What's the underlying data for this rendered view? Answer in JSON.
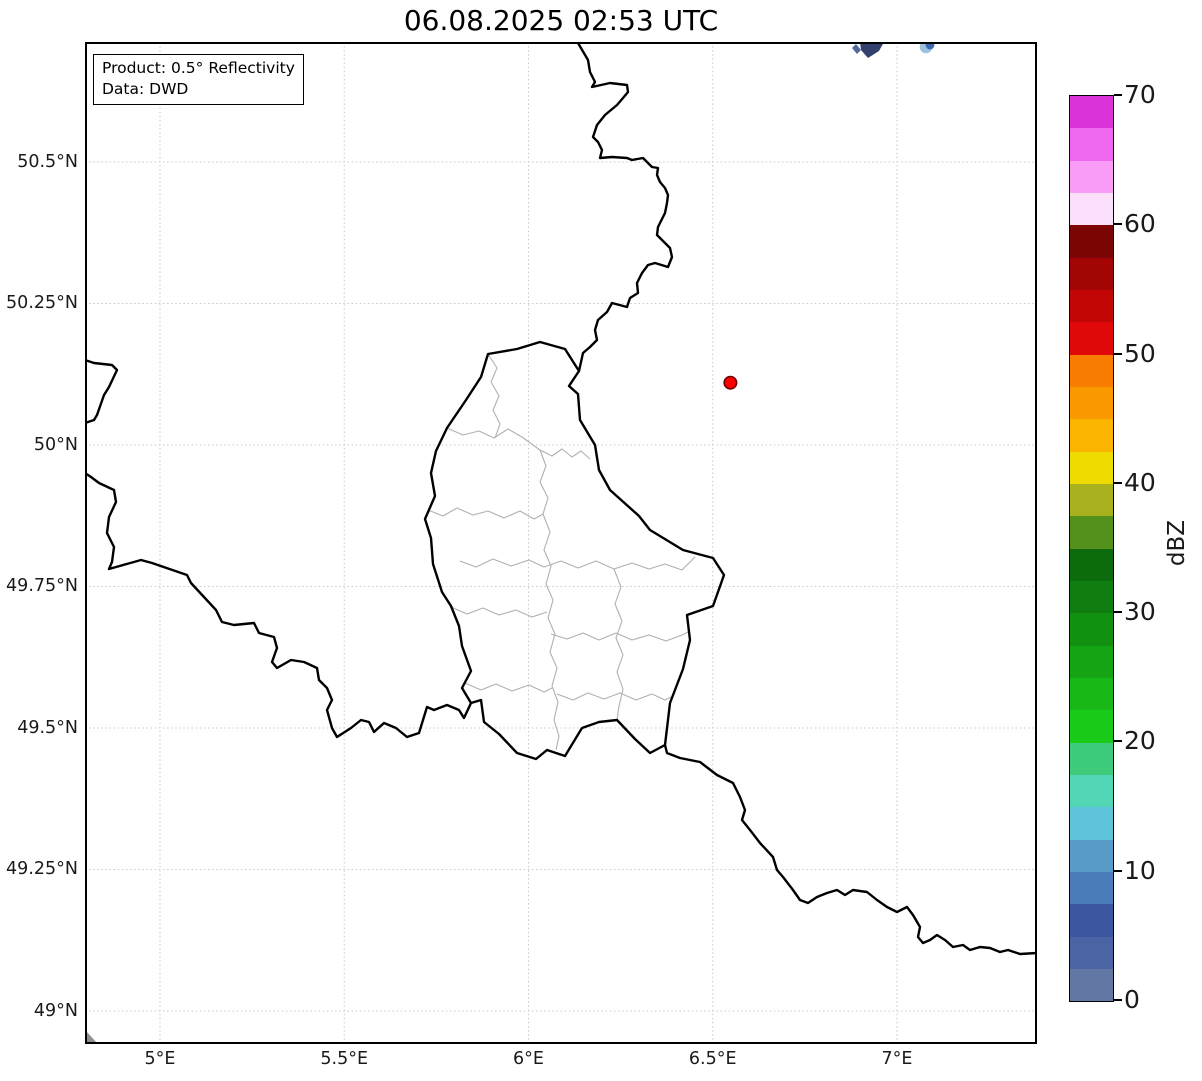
{
  "title": "06.08.2025 02:53 UTC",
  "info_box": {
    "product": "Product: 0.5° Reflectivity",
    "data_source": "Data: DWD"
  },
  "map": {
    "extent": {
      "lon_min": 4.7965,
      "lon_max": 7.3799,
      "lat_min": 48.9416,
      "lat_max": 50.712
    },
    "x_ticks": [
      {
        "lon": 5.0,
        "label": "5°E"
      },
      {
        "lon": 5.5,
        "label": "5.5°E"
      },
      {
        "lon": 6.0,
        "label": "6°E"
      },
      {
        "lon": 6.5,
        "label": "6.5°E"
      },
      {
        "lon": 7.0,
        "label": "7°E"
      }
    ],
    "y_ticks": [
      {
        "lat": 50.5,
        "label": "50.5°N"
      },
      {
        "lat": 50.25,
        "label": "50.25°N"
      },
      {
        "lat": 50.0,
        "label": "50°N"
      },
      {
        "lat": 49.75,
        "label": "49.75°N"
      },
      {
        "lat": 49.5,
        "label": "49.5°N"
      },
      {
        "lat": 49.25,
        "label": "49.25°N"
      },
      {
        "lat": 49.0,
        "label": "49°N"
      }
    ],
    "radar_site": {
      "lon": 6.548,
      "lat": 50.11,
      "marker_color": "#fd0000",
      "marker_edge": "#6b0000"
    },
    "echoes": [
      {
        "approx_lon": 6.93,
        "approx_lat": 50.7,
        "dbz_range": "0-10",
        "color": "#33406e"
      },
      {
        "approx_lon": 7.09,
        "approx_lat": 50.7,
        "dbz_range": "5-12.5",
        "color": "#3e68ae"
      }
    ],
    "border_color": "#000000",
    "canton_border_color": "#b0b0b0",
    "gridline_color": "#c9c9c9"
  },
  "colorbar": {
    "label": "dBZ",
    "unit_min": 0,
    "unit_max": 70,
    "band_step_dbz": 2.5,
    "tick_values": [
      70,
      60,
      50,
      40,
      30,
      20,
      10,
      0
    ],
    "band_colors_top_to_bottom": [
      "#da33da",
      "#ef66ef",
      "#f89cf8",
      "#fbdffb",
      "#7b0404",
      "#a30505",
      "#c20606",
      "#e00808",
      "#f87c00",
      "#fa9800",
      "#fbb500",
      "#eedc00",
      "#a9b11e",
      "#53901c",
      "#0c6b0c",
      "#0f7d0f",
      "#119011",
      "#14a414",
      "#17b817",
      "#1acb1a",
      "#3ecc7c",
      "#53d6b5",
      "#5fc3dc",
      "#599cc9",
      "#4a7cba",
      "#3d56a0",
      "#4b64a3",
      "#6377a5"
    ]
  }
}
